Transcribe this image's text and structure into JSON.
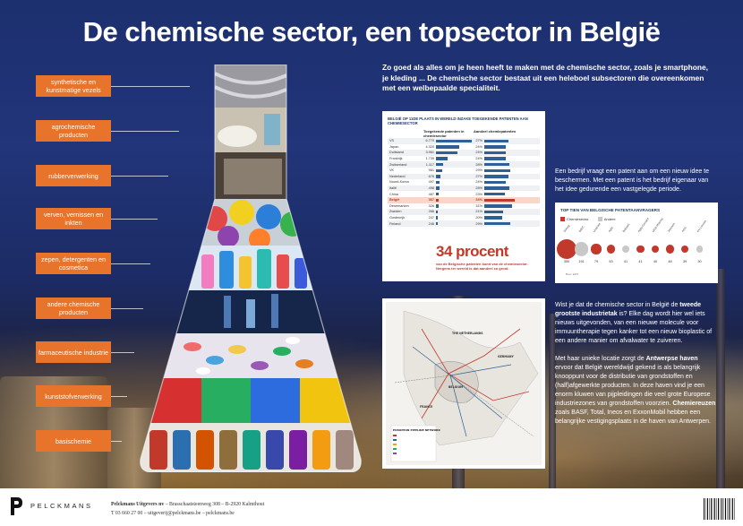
{
  "title": "De chemische sector, een topsector in België",
  "categories": [
    "synthetische en kunstmatige vezels",
    "agrochemische producten",
    "rubberverwerking",
    "verven, vernissen en inkten",
    "zepen, detergenten en cosmetica",
    "andere chemische producten",
    "farmaceutische industrie",
    "kunststofverwerking",
    "basischemie"
  ],
  "intro": "Zo goed als alles om je heen heeft te maken met de chemische sector, zoals je smartphone, je kleding ... De chemische sector bestaat uit een heleboel subsectoren die overeenkomen met een welbepaalde specialiteit.",
  "patent_card": {
    "title": "BELGIË OP 11DE PLAATS IN WERELD INZAKE TOEGEKENDE PATENTEN AAN CHEMIESECTOR",
    "col1": "Toegekende patenten in chemiesector",
    "col2": "Aandeel chemiepatenten",
    "rows": [
      {
        "country": "VS",
        "value": "6.770",
        "share": "27%",
        "bar": 0.95,
        "bar2": 0.54
      },
      {
        "country": "Japan",
        "value": "4.320",
        "share": "24%",
        "bar": 0.62,
        "bar2": 0.48
      },
      {
        "country": "Duitsland",
        "value": "3.961",
        "share": "24%",
        "bar": 0.56,
        "bar2": 0.48
      },
      {
        "country": "Frankrijk",
        "value": "1.739",
        "share": "24%",
        "bar": 0.3,
        "bar2": 0.48
      },
      {
        "country": "Zwitserland",
        "value": "1.117",
        "share": "28%",
        "bar": 0.2,
        "bar2": 0.56
      },
      {
        "country": "VK",
        "value": "961",
        "share": "29%",
        "bar": 0.16,
        "bar2": 0.58
      },
      {
        "country": "Nederland",
        "value": "676",
        "share": "27%",
        "bar": 0.12,
        "bar2": 0.54
      },
      {
        "country": "Noord-Korea",
        "value": "497",
        "share": "24%",
        "bar": 0.09,
        "bar2": 0.48
      },
      {
        "country": "Italië",
        "value": "498",
        "share": "28%",
        "bar": 0.09,
        "bar2": 0.56
      },
      {
        "country": "China",
        "value": "467",
        "share": "23%",
        "bar": 0.08,
        "bar2": 0.46
      },
      {
        "country": "België",
        "value": "367",
        "share": "34%",
        "bar": 0.07,
        "bar2": 0.68,
        "highlight": true
      },
      {
        "country": "Denemarken",
        "value": "326",
        "share": "31%",
        "bar": 0.06,
        "bar2": 0.62
      },
      {
        "country": "Zweden",
        "value": "266",
        "share": "21%",
        "bar": 0.05,
        "bar2": 0.42
      },
      {
        "country": "Oostenrijk",
        "value": "247",
        "share": "20%",
        "bar": 0.045,
        "bar2": 0.4
      },
      {
        "country": "Finland",
        "value": "246",
        "share": "29%",
        "bar": 0.045,
        "bar2": 0.58
      }
    ],
    "big_pct": "34 procent",
    "big_pct_sub": "van de Belgische patenten komt van de chemiesector. Nergens ter wereld is dat aandeel zo groot."
  },
  "side1": "Een bedrijf vraagt een patent aan om een nieuw idee te beschermen. Met een patent is het bedrijf eigenaar van het idee gedurende een vastgelegde periode.",
  "top10": {
    "title": "TOP TIEN VAN BELGISCHE PATENTAANVRAGERS",
    "legend_chem": "Chemiesector",
    "legend_other": "Andere",
    "items": [
      {
        "name": "Solvay",
        "value": "350",
        "chem": true,
        "size": 1.0
      },
      {
        "name": "IMEC",
        "value": "191",
        "chem": false,
        "size": 0.62
      },
      {
        "name": "Umicore",
        "value": "79",
        "chem": true,
        "size": 0.4
      },
      {
        "name": "Agfa",
        "value": "53",
        "chem": true,
        "size": 0.3
      },
      {
        "name": "Bekaert",
        "value": "41",
        "chem": false,
        "size": 0.26
      },
      {
        "name": "Agfa-Gevaert",
        "value": "41",
        "chem": true,
        "size": 0.26
      },
      {
        "name": "UCB Pharma",
        "value": "40",
        "chem": true,
        "size": 0.26
      },
      {
        "name": "Janssen",
        "value": "48",
        "chem": true,
        "size": 0.28
      },
      {
        "name": "AGC",
        "value": "39",
        "chem": true,
        "size": 0.25
      },
      {
        "name": "KU Leuven",
        "value": "30",
        "chem": false,
        "size": 0.22
      }
    ],
    "note": "Bron: EPO"
  },
  "side2_p1_a": "Wist je dat de chemische sector in België de ",
  "side2_p1_b": "tweede grootste industrietak",
  "side2_p1_c": " is? Elke dag wordt hier wel iets nieuws uitgevonden, van een nieuwe molecule voor immuuntherapie tegen kanker tot een nieuw bioplastic of een andere manier om afvalwater te zuiveren.",
  "side2_p2_a": "Met haar unieke locatie zorgt de ",
  "side2_p2_b": "Antwerpse haven",
  "side2_p2_c": " ervoor dat België wereldwijd gekend is als belangrijk knooppunt voor de distributie van grondstoffen en (half)afgewerkte producten. In deze haven vind je een enorm kluwen van pijpleidingen die veel grote Europese industriezones van grondstoffen voorzien. ",
  "side2_p2_d": "Chemiereuzen",
  "side2_p2_e": " zoals BASF, Total, Ineos en ExxonMobil hebben een belangrijke vestigingsplaats in de haven van Antwerpen.",
  "map": {
    "labels": [
      "THE NETHERLANDS",
      "GERMANY",
      "BELGIUM",
      "FRANCE"
    ],
    "legend_title": "EUROPEAN PIPELINE NETWORK"
  },
  "footer": {
    "logo": "PELCKMANS",
    "line1_bold": "Pelckmans Uitgevers nv",
    "line1": " – Brasschaatsteenweg 308 – B-2920 Kalmthout",
    "line2": "T 03 660 27 00 – uitgeverij@pelckmans.be – pelckmans.be"
  },
  "colors": {
    "orange": "#e8732a",
    "navy": "#1c2f6e",
    "red": "#c0392b",
    "bar": "#2f5f95"
  }
}
